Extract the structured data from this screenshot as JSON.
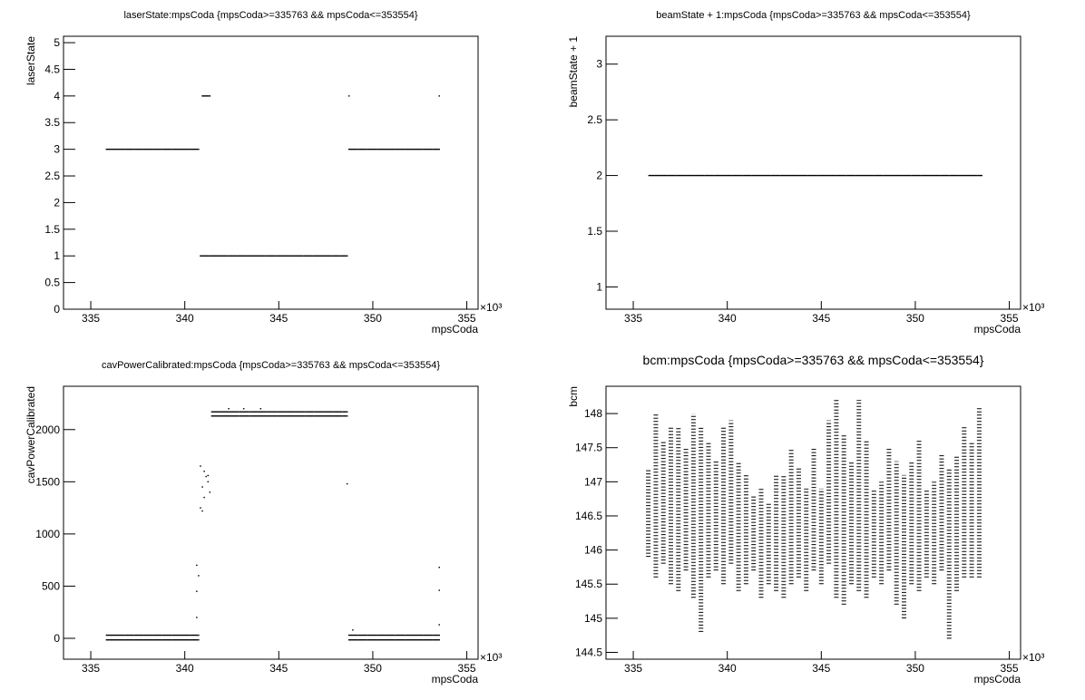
{
  "chart_data": [
    {
      "type": "scatter",
      "title": "laserState:mpsCoda {mpsCoda>=335763 && mpsCoda<=353554}",
      "x_label": "mpsCoda",
      "y_label": "laserState",
      "x_multiplier": "×10³",
      "xlim": [
        333.55,
        355.6
      ],
      "xticks": [
        335,
        340,
        345,
        350,
        355
      ],
      "ylim": [
        0,
        5.12
      ],
      "yticks": [
        0,
        0.5,
        1,
        1.5,
        2,
        2.5,
        3,
        3.5,
        4,
        4.5,
        5
      ],
      "color": "#000000",
      "x": [
        335.8,
        336.3,
        336.8,
        337.3,
        337.8,
        338.3,
        338.8,
        339.3,
        339.8,
        340.3,
        340.7,
        340.8,
        340.9,
        341.3,
        341.3,
        341.8,
        342.3,
        342.8,
        343.3,
        343.8,
        344.3,
        344.8,
        345.3,
        345.8,
        346.3,
        346.8,
        347.3,
        347.8,
        348.3,
        348.6,
        348.7,
        348.7,
        349.2,
        349.7,
        350.2,
        350.7,
        351.2,
        351.7,
        352.2,
        352.7,
        353.2,
        353.5,
        353.5
      ],
      "y": [
        3,
        3,
        3,
        3,
        3,
        3,
        3,
        3,
        3,
        3,
        3,
        1,
        4,
        4,
        1,
        1,
        1,
        1,
        1,
        1,
        1,
        1,
        1,
        1,
        1,
        1,
        1,
        1,
        1,
        1,
        4,
        3,
        3,
        3,
        3,
        3,
        3,
        3,
        3,
        3,
        3,
        3,
        4
      ]
    },
    {
      "type": "scatter",
      "title": "beamState + 1:mpsCoda {mpsCoda>=335763 && mpsCoda<=353554}",
      "x_label": "mpsCoda",
      "y_label": "beamState + 1",
      "x_multiplier": "×10³",
      "xlim": [
        333.55,
        355.6
      ],
      "xticks": [
        335,
        340,
        345,
        350,
        355
      ],
      "ylim": [
        0.8,
        3.25
      ],
      "yticks": [
        1,
        1.5,
        2,
        2.5,
        3
      ],
      "color": "#000000",
      "x": [
        335.8,
        336.3,
        336.8,
        337.3,
        337.8,
        338.3,
        338.8,
        339.3,
        339.8,
        340.3,
        340.8,
        341.3,
        341.8,
        342.3,
        342.8,
        343.3,
        343.8,
        344.3,
        344.8,
        345.3,
        345.8,
        346.3,
        346.8,
        347.3,
        347.8,
        348.3,
        348.8,
        349.3,
        349.8,
        350.3,
        350.8,
        351.3,
        351.8,
        352.3,
        352.8,
        353.3,
        353.5
      ],
      "y": [
        2,
        2,
        2,
        2,
        2,
        2,
        2,
        2,
        2,
        2,
        2,
        2,
        2,
        2,
        2,
        2,
        2,
        2,
        2,
        2,
        2,
        2,
        2,
        2,
        2,
        2,
        2,
        2,
        2,
        2,
        2,
        2,
        2,
        2,
        2,
        2,
        2
      ]
    },
    {
      "type": "scatter",
      "title": "cavPowerCalibrated:mpsCoda {mpsCoda>=335763 && mpsCoda<=353554}",
      "x_label": "mpsCoda",
      "y_label": "cavPowerCalibrated",
      "x_multiplier": "×10³",
      "xlim": [
        333.55,
        355.6
      ],
      "xticks": [
        335,
        340,
        345,
        350,
        355
      ],
      "ylim": [
        -200,
        2415
      ],
      "yticks": [
        0,
        500,
        1000,
        1500,
        2000
      ],
      "color": "#000000",
      "x": [
        335.8,
        335.8,
        336.3,
        336.3,
        336.8,
        336.8,
        337.3,
        337.3,
        337.8,
        337.8,
        338.3,
        338.3,
        338.8,
        338.8,
        339.3,
        339.3,
        339.8,
        339.8,
        340.3,
        340.3,
        340.7,
        340.7,
        340.6,
        340.6,
        340.6,
        340.7,
        340.8,
        340.8,
        340.9,
        340.9,
        341.0,
        341.0,
        341.1,
        341.2,
        341.2,
        341.3,
        341.4,
        341.4,
        341.9,
        341.9,
        342.4,
        342.4,
        342.9,
        342.9,
        343.4,
        343.4,
        343.9,
        343.9,
        344.4,
        344.4,
        344.9,
        344.9,
        345.4,
        345.4,
        345.9,
        345.9,
        346.4,
        346.4,
        346.9,
        346.9,
        347.4,
        347.4,
        347.9,
        347.9,
        348.4,
        348.4,
        348.6,
        348.6,
        342.3,
        343.1,
        344.0,
        348.6,
        348.7,
        348.7,
        349.2,
        349.2,
        349.7,
        349.7,
        350.2,
        350.2,
        350.7,
        350.7,
        351.2,
        351.2,
        351.7,
        351.7,
        352.2,
        352.2,
        352.7,
        352.7,
        353.2,
        353.2,
        353.5,
        353.5,
        348.9,
        353.5,
        353.5,
        353.5
      ],
      "y": [
        30,
        -15,
        30,
        -15,
        30,
        -15,
        30,
        -15,
        30,
        -15,
        30,
        -15,
        30,
        -15,
        30,
        -15,
        30,
        -15,
        30,
        -15,
        30,
        -15,
        700,
        450,
        200,
        600,
        1250,
        1650,
        1450,
        1220,
        1350,
        1600,
        1550,
        1500,
        1560,
        1400,
        2170,
        2130,
        2170,
        2130,
        2170,
        2130,
        2170,
        2130,
        2170,
        2130,
        2170,
        2130,
        2170,
        2130,
        2170,
        2130,
        2170,
        2130,
        2170,
        2130,
        2170,
        2130,
        2170,
        2130,
        2170,
        2130,
        2170,
        2130,
        2170,
        2130,
        2170,
        2130,
        2200,
        2200,
        2200,
        1480,
        30,
        -15,
        30,
        -15,
        30,
        -15,
        30,
        -15,
        30,
        -15,
        30,
        -15,
        30,
        -15,
        30,
        -15,
        30,
        -15,
        30,
        -15,
        30,
        -15,
        80,
        680,
        460,
        130
      ]
    },
    {
      "type": "range",
      "title": "bcm:mpsCoda {mpsCoda>=335763 && mpsCoda<=353554}",
      "x_label": "mpsCoda",
      "y_label": "bcm",
      "x_multiplier": "×10³",
      "xlim": [
        333.55,
        355.6
      ],
      "xticks": [
        335,
        340,
        345,
        350,
        355
      ],
      "ylim": [
        144.4,
        148.4
      ],
      "yticks": [
        144.5,
        145,
        145.5,
        146,
        146.5,
        147,
        147.5,
        148
      ],
      "color": "#000000",
      "x": [
        335.8,
        336.2,
        336.6,
        337.0,
        337.4,
        337.8,
        338.2,
        338.6,
        339.0,
        339.4,
        339.8,
        340.2,
        340.6,
        341.0,
        341.4,
        341.8,
        342.2,
        342.6,
        343.0,
        343.4,
        343.8,
        344.2,
        344.6,
        345.0,
        345.4,
        345.8,
        346.2,
        346.6,
        347.0,
        347.4,
        347.8,
        348.2,
        348.6,
        349.0,
        349.4,
        349.8,
        350.2,
        350.6,
        351.0,
        351.4,
        351.8,
        352.2,
        352.6,
        353.0,
        353.4
      ],
      "low": [
        145.9,
        145.6,
        145.8,
        145.5,
        145.4,
        145.7,
        145.3,
        144.8,
        145.6,
        145.7,
        145.5,
        145.8,
        145.4,
        145.5,
        145.7,
        145.3,
        145.5,
        145.4,
        145.3,
        145.5,
        145.6,
        145.4,
        145.7,
        145.5,
        145.8,
        145.3,
        145.2,
        145.5,
        145.4,
        145.3,
        145.6,
        145.5,
        145.7,
        145.2,
        145.0,
        145.5,
        145.4,
        145.6,
        145.5,
        145.7,
        144.7,
        145.4,
        145.6,
        145.6,
        145.6
      ],
      "high": [
        147.2,
        148.0,
        147.6,
        147.8,
        147.8,
        147.5,
        148.0,
        147.8,
        147.6,
        147.3,
        147.8,
        147.9,
        147.3,
        147.1,
        146.8,
        146.9,
        146.7,
        147.1,
        147.1,
        147.5,
        147.2,
        146.9,
        147.5,
        146.9,
        147.9,
        148.2,
        147.7,
        147.3,
        148.2,
        147.6,
        146.9,
        147.0,
        147.5,
        147.3,
        147.1,
        147.3,
        147.6,
        146.9,
        147.0,
        147.4,
        147.2,
        147.4,
        147.8,
        147.6,
        148.1
      ]
    }
  ]
}
